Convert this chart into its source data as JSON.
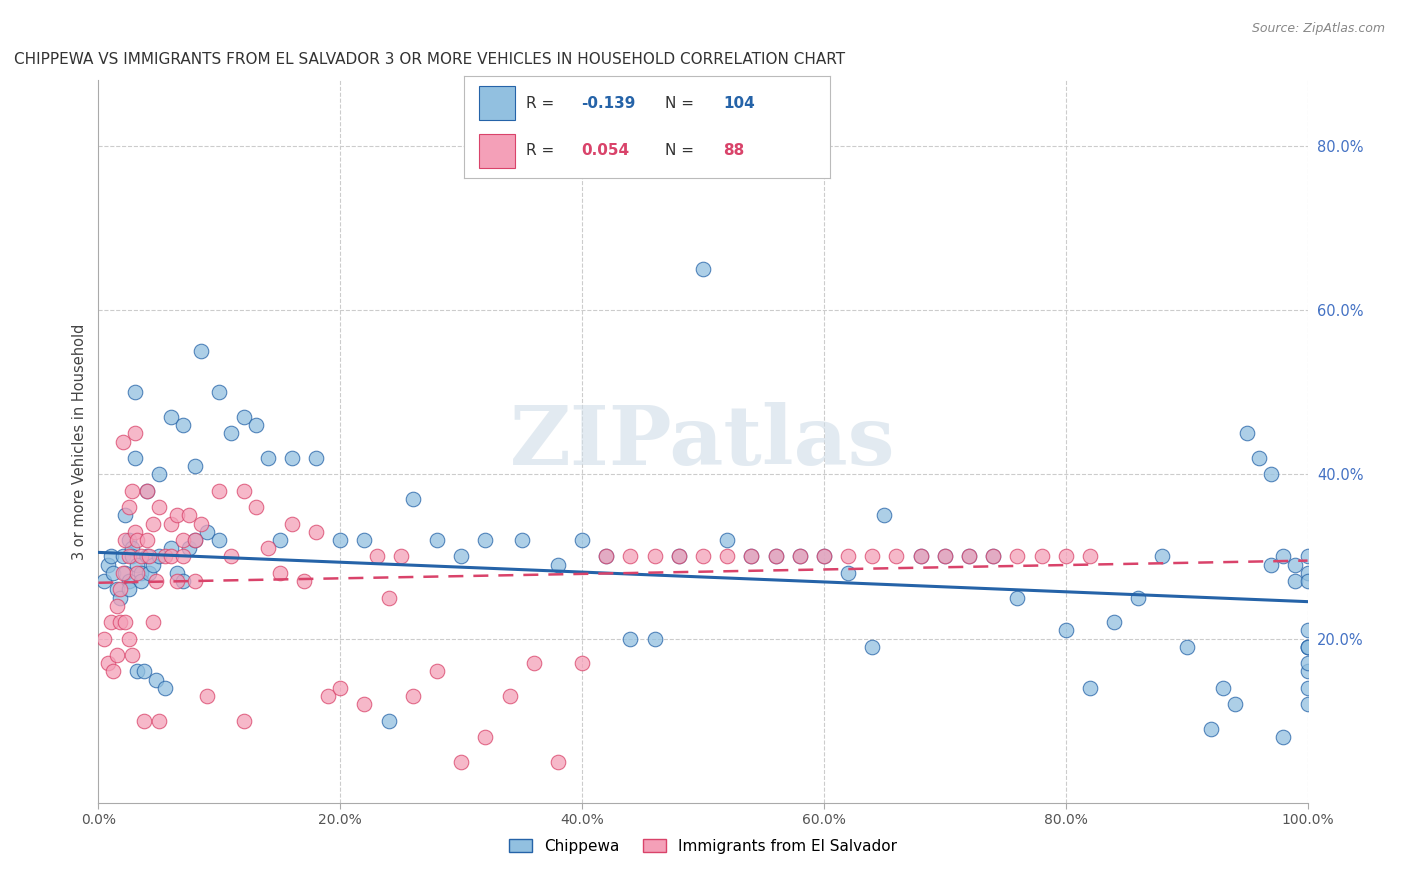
{
  "title": "CHIPPEWA VS IMMIGRANTS FROM EL SALVADOR 3 OR MORE VEHICLES IN HOUSEHOLD CORRELATION CHART",
  "source": "Source: ZipAtlas.com",
  "ylabel": "3 or more Vehicles in Household",
  "x_tick_labels": [
    "0.0%",
    "20.0%",
    "40.0%",
    "60.0%",
    "80.0%",
    "100.0%"
  ],
  "y_tick_labels_right": [
    "20.0%",
    "40.0%",
    "60.0%",
    "80.0%"
  ],
  "x_ticks": [
    0.0,
    0.2,
    0.4,
    0.6,
    0.8,
    1.0
  ],
  "y_ticks_right": [
    0.2,
    0.4,
    0.6,
    0.8
  ],
  "xlim": [
    0,
    1.0
  ],
  "ylim": [
    0,
    0.88
  ],
  "legend_label1": "Chippewa",
  "legend_label2": "Immigrants from El Salvador",
  "R1": -0.139,
  "N1": 104,
  "R2": 0.054,
  "N2": 88,
  "color_blue": "#92c0e0",
  "color_pink": "#f4a0b8",
  "color_line_blue": "#2563a8",
  "color_line_pink": "#d9436a",
  "watermark": "ZIPatlas",
  "scatter_blue_x": [
    0.005,
    0.008,
    0.01,
    0.012,
    0.015,
    0.018,
    0.02,
    0.022,
    0.022,
    0.025,
    0.025,
    0.025,
    0.028,
    0.028,
    0.03,
    0.03,
    0.032,
    0.032,
    0.035,
    0.035,
    0.038,
    0.04,
    0.04,
    0.042,
    0.045,
    0.048,
    0.05,
    0.05,
    0.055,
    0.06,
    0.06,
    0.065,
    0.07,
    0.07,
    0.075,
    0.08,
    0.08,
    0.085,
    0.09,
    0.1,
    0.1,
    0.11,
    0.12,
    0.13,
    0.14,
    0.15,
    0.16,
    0.18,
    0.2,
    0.22,
    0.24,
    0.26,
    0.28,
    0.3,
    0.32,
    0.35,
    0.38,
    0.4,
    0.42,
    0.44,
    0.46,
    0.48,
    0.5,
    0.52,
    0.54,
    0.56,
    0.58,
    0.6,
    0.62,
    0.64,
    0.65,
    0.68,
    0.7,
    0.72,
    0.74,
    0.76,
    0.8,
    0.82,
    0.84,
    0.86,
    0.88,
    0.9,
    0.92,
    0.93,
    0.94,
    0.95,
    0.96,
    0.97,
    0.97,
    0.98,
    0.98,
    0.99,
    0.99,
    1.0,
    1.0,
    1.0,
    1.0,
    1.0,
    1.0,
    1.0,
    1.0,
    1.0,
    1.0,
    1.0
  ],
  "scatter_blue_y": [
    0.27,
    0.29,
    0.3,
    0.28,
    0.26,
    0.25,
    0.3,
    0.28,
    0.35,
    0.32,
    0.27,
    0.26,
    0.31,
    0.3,
    0.5,
    0.42,
    0.29,
    0.16,
    0.28,
    0.27,
    0.16,
    0.38,
    0.3,
    0.28,
    0.29,
    0.15,
    0.4,
    0.3,
    0.14,
    0.47,
    0.31,
    0.28,
    0.46,
    0.27,
    0.31,
    0.41,
    0.32,
    0.55,
    0.33,
    0.5,
    0.32,
    0.45,
    0.47,
    0.46,
    0.42,
    0.32,
    0.42,
    0.42,
    0.32,
    0.32,
    0.1,
    0.37,
    0.32,
    0.3,
    0.32,
    0.32,
    0.29,
    0.32,
    0.3,
    0.2,
    0.2,
    0.3,
    0.65,
    0.32,
    0.3,
    0.3,
    0.3,
    0.3,
    0.28,
    0.19,
    0.35,
    0.3,
    0.3,
    0.3,
    0.3,
    0.25,
    0.21,
    0.14,
    0.22,
    0.25,
    0.3,
    0.19,
    0.09,
    0.14,
    0.12,
    0.45,
    0.42,
    0.4,
    0.29,
    0.08,
    0.3,
    0.29,
    0.27,
    0.19,
    0.14,
    0.21,
    0.19,
    0.12,
    0.28,
    0.27,
    0.3,
    0.19,
    0.16,
    0.17
  ],
  "scatter_pink_x": [
    0.005,
    0.008,
    0.01,
    0.012,
    0.015,
    0.015,
    0.018,
    0.018,
    0.02,
    0.02,
    0.022,
    0.022,
    0.025,
    0.025,
    0.025,
    0.028,
    0.028,
    0.03,
    0.03,
    0.032,
    0.032,
    0.035,
    0.038,
    0.04,
    0.04,
    0.042,
    0.045,
    0.045,
    0.048,
    0.05,
    0.05,
    0.055,
    0.06,
    0.06,
    0.065,
    0.065,
    0.07,
    0.07,
    0.075,
    0.08,
    0.08,
    0.085,
    0.09,
    0.1,
    0.11,
    0.12,
    0.12,
    0.13,
    0.14,
    0.15,
    0.16,
    0.17,
    0.18,
    0.19,
    0.2,
    0.22,
    0.23,
    0.24,
    0.25,
    0.26,
    0.28,
    0.3,
    0.32,
    0.34,
    0.36,
    0.38,
    0.4,
    0.42,
    0.44,
    0.46,
    0.48,
    0.5,
    0.52,
    0.54,
    0.56,
    0.58,
    0.6,
    0.62,
    0.64,
    0.66,
    0.68,
    0.7,
    0.72,
    0.74,
    0.76,
    0.78,
    0.8,
    0.82
  ],
  "scatter_pink_y": [
    0.2,
    0.17,
    0.22,
    0.16,
    0.24,
    0.18,
    0.26,
    0.22,
    0.44,
    0.28,
    0.32,
    0.22,
    0.36,
    0.3,
    0.2,
    0.38,
    0.18,
    0.45,
    0.33,
    0.32,
    0.28,
    0.3,
    0.1,
    0.38,
    0.32,
    0.3,
    0.34,
    0.22,
    0.27,
    0.36,
    0.1,
    0.3,
    0.34,
    0.3,
    0.35,
    0.27,
    0.32,
    0.3,
    0.35,
    0.32,
    0.27,
    0.34,
    0.13,
    0.38,
    0.3,
    0.38,
    0.1,
    0.36,
    0.31,
    0.28,
    0.34,
    0.27,
    0.33,
    0.13,
    0.14,
    0.12,
    0.3,
    0.25,
    0.3,
    0.13,
    0.16,
    0.05,
    0.08,
    0.13,
    0.17,
    0.05,
    0.17,
    0.3,
    0.3,
    0.3,
    0.3,
    0.3,
    0.3,
    0.3,
    0.3,
    0.3,
    0.3,
    0.3,
    0.3,
    0.3,
    0.3,
    0.3,
    0.3,
    0.3,
    0.3,
    0.3,
    0.3,
    0.3
  ]
}
